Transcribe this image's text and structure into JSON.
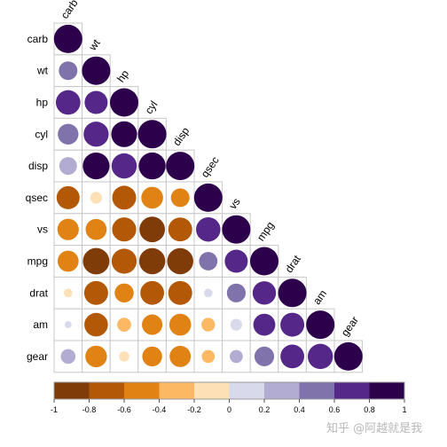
{
  "watermark": "知乎 @阿越就是我",
  "chart_data": {
    "type": "heatmap",
    "variables": [
      "carb",
      "wt",
      "hp",
      "cyl",
      "disp",
      "qsec",
      "vs",
      "mpg",
      "drat",
      "am",
      "gear"
    ],
    "matrix": [
      [
        1.0,
        null,
        null,
        null,
        null,
        null,
        null,
        null,
        null,
        null,
        null
      ],
      [
        0.43,
        1.0,
        null,
        null,
        null,
        null,
        null,
        null,
        null,
        null,
        null
      ],
      [
        0.75,
        0.66,
        1.0,
        null,
        null,
        null,
        null,
        null,
        null,
        null,
        null
      ],
      [
        0.53,
        0.78,
        0.83,
        1.0,
        null,
        null,
        null,
        null,
        null,
        null,
        null
      ],
      [
        0.39,
        0.89,
        0.79,
        0.9,
        1.0,
        null,
        null,
        null,
        null,
        null,
        null
      ],
      [
        -0.66,
        -0.17,
        -0.71,
        -0.59,
        -0.43,
        1.0,
        null,
        null,
        null,
        null,
        null
      ],
      [
        -0.57,
        -0.55,
        -0.72,
        -0.81,
        -0.71,
        0.74,
        1.0,
        null,
        null,
        null,
        null
      ],
      [
        -0.55,
        -0.87,
        -0.78,
        -0.85,
        -0.85,
        0.42,
        0.66,
        1.0,
        null,
        null,
        null
      ],
      [
        -0.09,
        -0.71,
        -0.45,
        -0.7,
        -0.71,
        0.09,
        0.44,
        0.68,
        1.0,
        null,
        null
      ],
      [
        0.06,
        -0.69,
        -0.24,
        -0.52,
        -0.59,
        -0.23,
        0.17,
        0.6,
        0.71,
        1.0,
        null
      ],
      [
        0.27,
        -0.58,
        -0.13,
        -0.49,
        -0.56,
        -0.21,
        0.21,
        0.48,
        0.7,
        0.79,
        1.0
      ]
    ],
    "colorbar": {
      "ticks": [
        "-1",
        "-0.8",
        "-0.6",
        "-0.4",
        "-0.2",
        "0",
        "0.2",
        "0.4",
        "0.6",
        "0.8",
        "1"
      ],
      "colors": [
        "#7f3b08",
        "#b35806",
        "#e08214",
        "#fdb863",
        "#fee0b6",
        "#d8daeb",
        "#b2abd2",
        "#8073ac",
        "#542788",
        "#2d004b"
      ]
    },
    "grid": true,
    "legend_position": "bottom"
  }
}
